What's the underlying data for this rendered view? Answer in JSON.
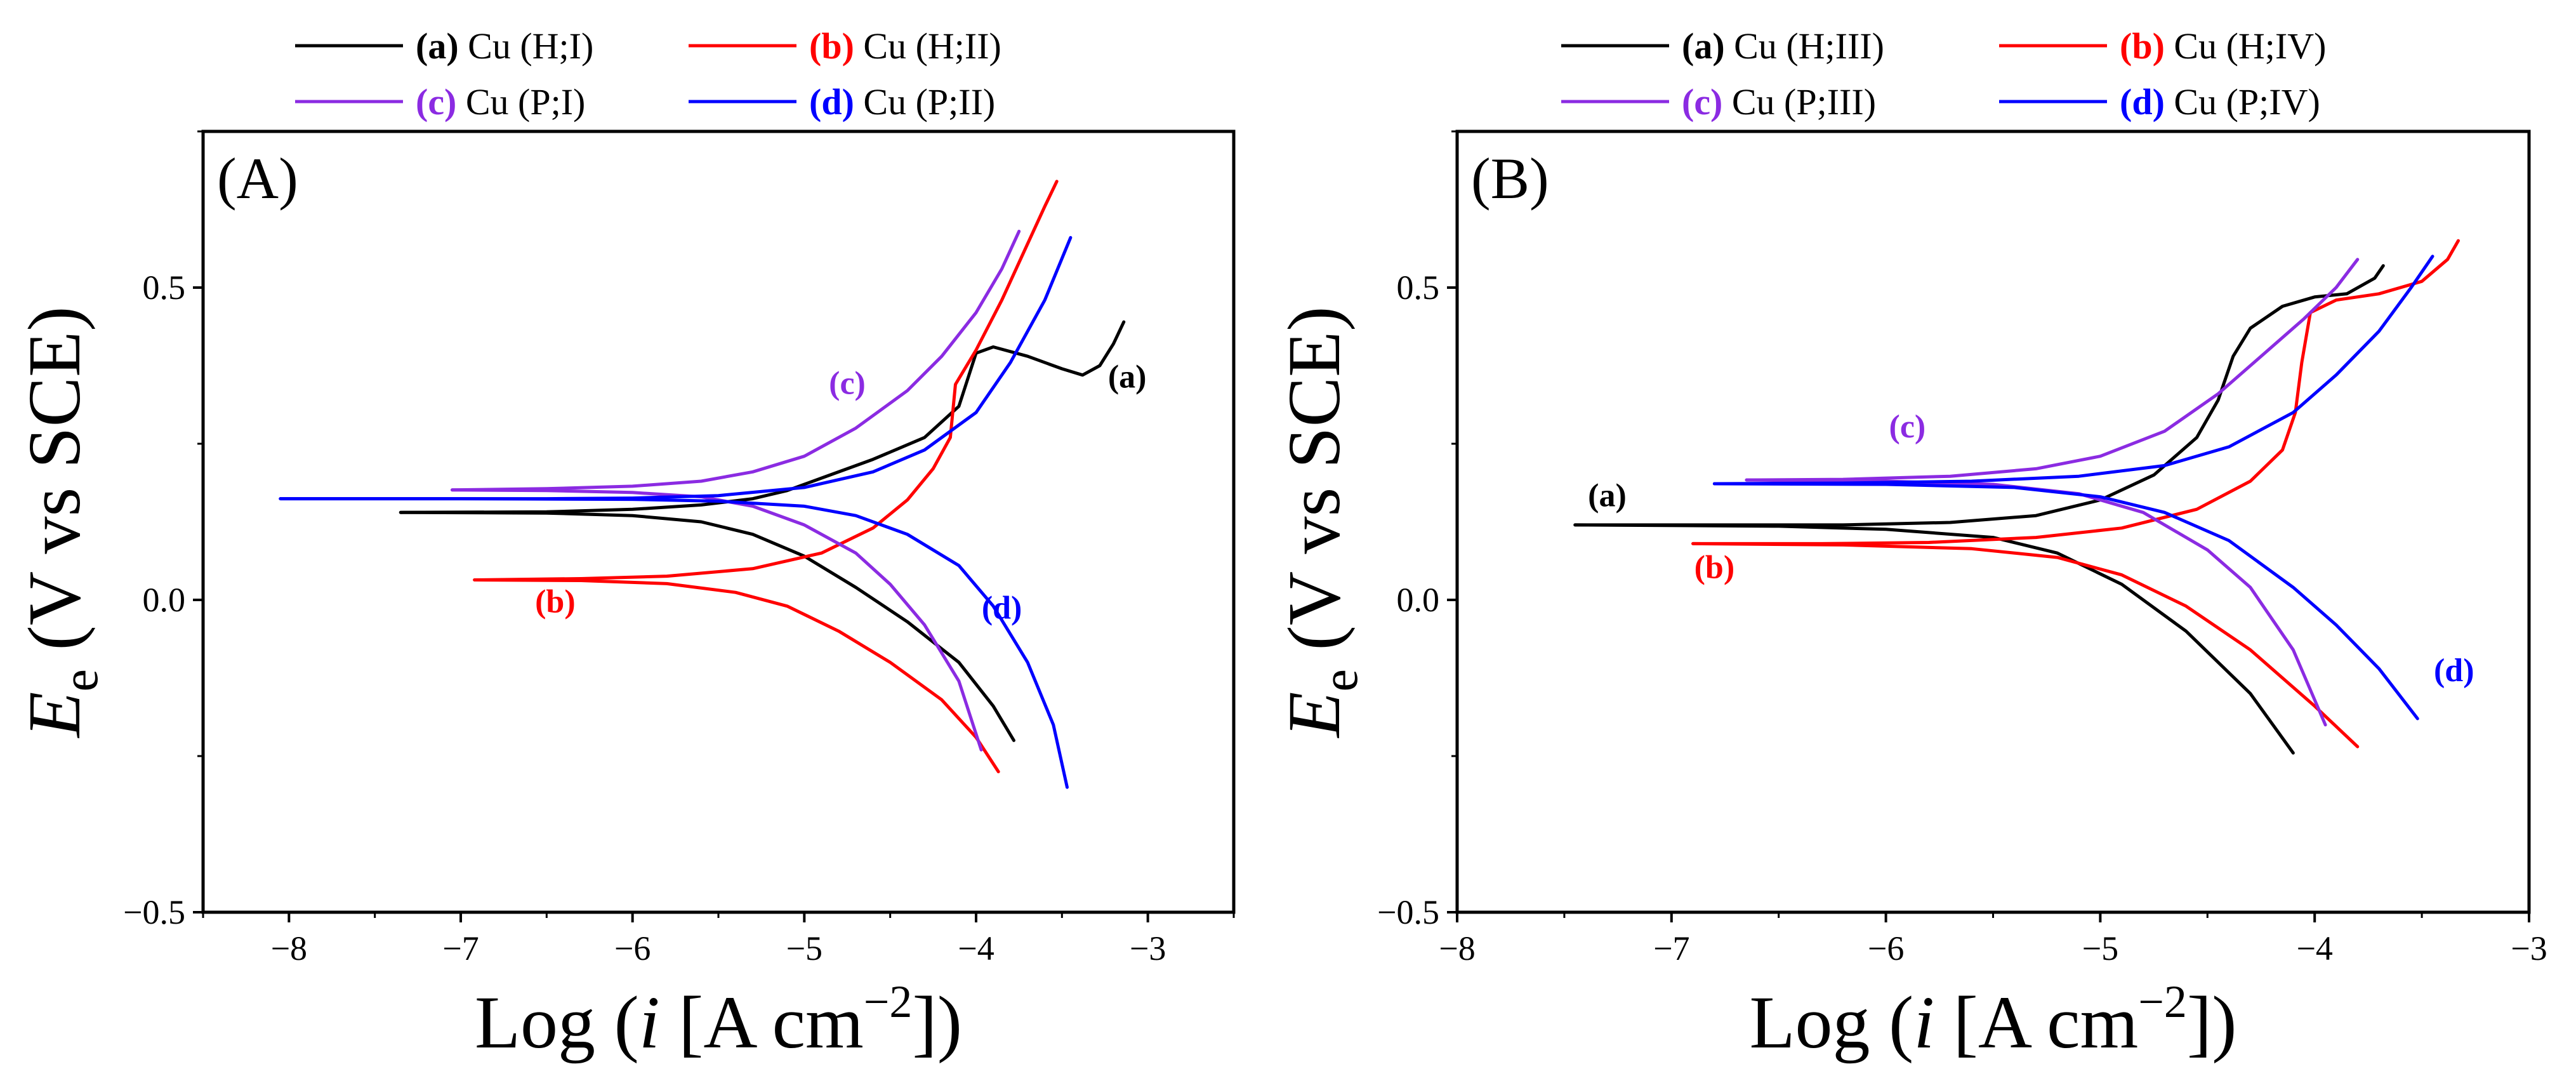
{
  "chart_data": [
    {
      "type": "line",
      "panel_label": "(A)",
      "xlabel": {
        "prefix": "Log (",
        "var": "i",
        "unit": " [A cm",
        "exp": "−2",
        "suffix": "])"
      },
      "ylabel": {
        "var": "E",
        "sub": "e",
        "rest": " (V vs SCE)"
      },
      "xlim": [
        -8.5,
        -2.5
      ],
      "ylim": [
        -0.5,
        0.75
      ],
      "xticks": [
        -8,
        -7,
        -6,
        -5,
        -4,
        -3
      ],
      "xtick_labels": [
        "−8",
        "−7",
        "−6",
        "−5",
        "−4",
        "−3"
      ],
      "yticks": [
        -0.5,
        0.0,
        0.5
      ],
      "ytick_labels": [
        "−0.5",
        "0.0",
        "0.5"
      ],
      "grid": false,
      "legend": "top, outside plot, two columns",
      "series": [
        {
          "key": "(a)",
          "name": "Cu (H;I)",
          "color": "#000000",
          "label_at": [
            -3.12,
            0.34
          ],
          "x": [
            -7.35,
            -6.5,
            -6.0,
            -5.6,
            -5.3,
            -5.1,
            -4.9,
            -4.6,
            -4.3,
            -4.1,
            -4.0,
            -3.9,
            -3.7,
            -3.5,
            -3.38,
            -3.28,
            -3.2,
            -3.14
          ],
          "y": [
            0.14,
            0.141,
            0.145,
            0.152,
            0.162,
            0.175,
            0.195,
            0.225,
            0.26,
            0.31,
            0.395,
            0.405,
            0.39,
            0.37,
            0.36,
            0.375,
            0.41,
            0.445
          ]
        },
        {
          "key": "(a)",
          "name": "Cu (H;I)",
          "color": "#000000",
          "branch": "cathodic",
          "x": [
            -7.35,
            -6.5,
            -6.0,
            -5.6,
            -5.3,
            -5.0,
            -4.7,
            -4.4,
            -4.1,
            -3.9,
            -3.78
          ],
          "y": [
            0.14,
            0.139,
            0.135,
            0.125,
            0.105,
            0.07,
            0.02,
            -0.035,
            -0.1,
            -0.17,
            -0.225
          ]
        },
        {
          "key": "(b)",
          "name": "Cu (H;II)",
          "color": "#ff0000",
          "label_at": [
            -6.45,
            -0.02
          ],
          "x": [
            -6.92,
            -6.3,
            -5.8,
            -5.3,
            -4.9,
            -4.6,
            -4.4,
            -4.25,
            -4.15,
            -4.12,
            -4.0,
            -3.85,
            -3.7,
            -3.6,
            -3.53
          ],
          "y": [
            0.032,
            0.034,
            0.038,
            0.05,
            0.075,
            0.115,
            0.16,
            0.21,
            0.26,
            0.345,
            0.4,
            0.48,
            0.57,
            0.63,
            0.67
          ]
        },
        {
          "key": "(b)",
          "name": "Cu (H;II)",
          "color": "#ff0000",
          "branch": "cathodic",
          "x": [
            -6.92,
            -6.3,
            -5.8,
            -5.4,
            -5.1,
            -4.8,
            -4.5,
            -4.2,
            -4.0,
            -3.87
          ],
          "y": [
            0.032,
            0.031,
            0.026,
            0.012,
            -0.01,
            -0.05,
            -0.1,
            -0.16,
            -0.22,
            -0.275
          ]
        },
        {
          "key": "(c)",
          "name": "Cu (P;I)",
          "color": "#8b2be2",
          "label_at": [
            -4.75,
            0.33
          ],
          "x": [
            -7.05,
            -6.5,
            -6.0,
            -5.6,
            -5.3,
            -5.0,
            -4.7,
            -4.4,
            -4.2,
            -4.0,
            -3.85,
            -3.75
          ],
          "y": [
            0.176,
            0.178,
            0.182,
            0.19,
            0.205,
            0.23,
            0.275,
            0.335,
            0.39,
            0.46,
            0.53,
            0.59
          ]
        },
        {
          "key": "(c)",
          "name": "Cu (P;I)",
          "color": "#8b2be2",
          "branch": "cathodic",
          "x": [
            -7.05,
            -6.5,
            -6.0,
            -5.6,
            -5.3,
            -5.0,
            -4.7,
            -4.5,
            -4.3,
            -4.1,
            -3.97
          ],
          "y": [
            0.176,
            0.175,
            0.172,
            0.165,
            0.15,
            0.12,
            0.075,
            0.025,
            -0.04,
            -0.13,
            -0.24
          ]
        },
        {
          "key": "(d)",
          "name": "Cu (P;II)",
          "color": "#0000ff",
          "label_at": [
            -3.85,
            -0.03
          ],
          "x": [
            -8.05,
            -7.5,
            -7.0,
            -6.5,
            -6.0,
            -5.5,
            -5.0,
            -4.6,
            -4.3,
            -4.0,
            -3.8,
            -3.6,
            -3.45
          ],
          "y": [
            0.162,
            0.162,
            0.162,
            0.162,
            0.163,
            0.167,
            0.18,
            0.205,
            0.24,
            0.3,
            0.38,
            0.48,
            0.58
          ]
        },
        {
          "key": "(d)",
          "name": "Cu (P;II)",
          "color": "#0000ff",
          "branch": "cathodic",
          "x": [
            -8.05,
            -7.0,
            -6.0,
            -5.5,
            -5.0,
            -4.7,
            -4.4,
            -4.1,
            -3.9,
            -3.7,
            -3.55,
            -3.47
          ],
          "y": [
            0.162,
            0.162,
            0.161,
            0.158,
            0.15,
            0.135,
            0.105,
            0.055,
            -0.01,
            -0.1,
            -0.2,
            -0.3
          ]
        }
      ]
    },
    {
      "type": "line",
      "panel_label": "(B)",
      "xlabel": {
        "prefix": "Log (",
        "var": "i",
        "unit": " [A cm",
        "exp": "−2",
        "suffix": "])"
      },
      "ylabel": {
        "var": "E",
        "sub": "e",
        "rest": " (V vs SCE)"
      },
      "xlim": [
        -8.0,
        -3.0
      ],
      "ylim": [
        -0.5,
        0.75
      ],
      "xticks": [
        -8,
        -7,
        -6,
        -5,
        -4,
        -3
      ],
      "xtick_labels": [
        "−8",
        "−7",
        "−6",
        "−5",
        "−4",
        "−3"
      ],
      "yticks": [
        -0.5,
        0.0,
        0.5
      ],
      "ytick_labels": [
        "−0.5",
        "0.0",
        "0.5"
      ],
      "grid": false,
      "legend": "top, outside plot, two columns",
      "series": [
        {
          "key": "(a)",
          "name": "Cu (H;III)",
          "color": "#000000",
          "label_at": [
            -7.3,
            0.15
          ],
          "x": [
            -7.45,
            -6.8,
            -6.2,
            -5.7,
            -5.3,
            -5.0,
            -4.75,
            -4.55,
            -4.45,
            -4.38,
            -4.3,
            -4.15,
            -4.0,
            -3.85,
            -3.72,
            -3.68
          ],
          "y": [
            0.12,
            0.12,
            0.12,
            0.124,
            0.135,
            0.16,
            0.2,
            0.26,
            0.32,
            0.39,
            0.435,
            0.47,
            0.485,
            0.49,
            0.515,
            0.535
          ]
        },
        {
          "key": "(a)",
          "name": "Cu (H;III)",
          "color": "#000000",
          "branch": "cathodic",
          "x": [
            -7.45,
            -6.5,
            -6.0,
            -5.5,
            -5.2,
            -4.9,
            -4.6,
            -4.3,
            -4.1
          ],
          "y": [
            0.12,
            0.118,
            0.113,
            0.1,
            0.075,
            0.025,
            -0.05,
            -0.15,
            -0.245
          ]
        },
        {
          "key": "(b)",
          "name": "Cu (H;IV)",
          "color": "#ff0000",
          "label_at": [
            -6.8,
            0.035
          ],
          "x": [
            -6.9,
            -6.3,
            -5.8,
            -5.3,
            -4.9,
            -4.55,
            -4.3,
            -4.15,
            -4.09,
            -4.06,
            -4.02,
            -3.9,
            -3.7,
            -3.5,
            -3.38,
            -3.33
          ],
          "y": [
            0.09,
            0.09,
            0.092,
            0.1,
            0.115,
            0.145,
            0.19,
            0.24,
            0.3,
            0.38,
            0.46,
            0.48,
            0.49,
            0.51,
            0.545,
            0.575
          ]
        },
        {
          "key": "(b)",
          "name": "Cu (H;IV)",
          "color": "#ff0000",
          "branch": "cathodic",
          "x": [
            -6.9,
            -6.2,
            -5.6,
            -5.2,
            -4.9,
            -4.6,
            -4.3,
            -4.0,
            -3.8
          ],
          "y": [
            0.09,
            0.088,
            0.082,
            0.068,
            0.04,
            -0.01,
            -0.08,
            -0.17,
            -0.235
          ]
        },
        {
          "key": "(c)",
          "name": "Cu (P;III)",
          "color": "#8b2be2",
          "label_at": [
            -5.9,
            0.26
          ],
          "x": [
            -6.65,
            -6.2,
            -5.7,
            -5.3,
            -5.0,
            -4.7,
            -4.45,
            -4.25,
            -4.05,
            -3.9,
            -3.8
          ],
          "y": [
            0.192,
            0.193,
            0.198,
            0.21,
            0.23,
            0.27,
            0.33,
            0.39,
            0.45,
            0.5,
            0.545
          ]
        },
        {
          "key": "(c)",
          "name": "Cu (P;III)",
          "color": "#8b2be2",
          "branch": "cathodic",
          "x": [
            -6.65,
            -6.0,
            -5.5,
            -5.1,
            -4.8,
            -4.5,
            -4.3,
            -4.1,
            -3.95
          ],
          "y": [
            0.192,
            0.19,
            0.185,
            0.17,
            0.14,
            0.08,
            0.02,
            -0.08,
            -0.2
          ]
        },
        {
          "key": "(d)",
          "name": "Cu (P;IV)",
          "color": "#0000ff",
          "label_at": [
            -3.35,
            -0.13
          ],
          "x": [
            -6.8,
            -6.2,
            -5.6,
            -5.1,
            -4.7,
            -4.4,
            -4.1,
            -3.9,
            -3.7,
            -3.55,
            -3.45
          ],
          "y": [
            0.186,
            0.187,
            0.19,
            0.198,
            0.215,
            0.245,
            0.3,
            0.36,
            0.43,
            0.5,
            0.55
          ]
        },
        {
          "key": "(d)",
          "name": "Cu (P;IV)",
          "color": "#0000ff",
          "branch": "cathodic",
          "x": [
            -6.8,
            -6.0,
            -5.4,
            -5.0,
            -4.7,
            -4.4,
            -4.1,
            -3.9,
            -3.7,
            -3.52
          ],
          "y": [
            0.186,
            0.185,
            0.18,
            0.165,
            0.14,
            0.095,
            0.02,
            -0.04,
            -0.11,
            -0.19
          ]
        }
      ]
    }
  ],
  "legends": [
    {
      "items": [
        {
          "key": "(a)",
          "name": "Cu (H;I)",
          "color": "#000000",
          "key_color": "#000000"
        },
        {
          "key": "(b)",
          "name": "Cu (H;II)",
          "color": "#ff0000",
          "key_color": "#ff0000"
        },
        {
          "key": "(c)",
          "name": "Cu (P;I)",
          "color": "#8b2be2",
          "key_color": "#8b2be2"
        },
        {
          "key": "(d)",
          "name": "Cu (P;II)",
          "color": "#0000ff",
          "key_color": "#0000ff"
        }
      ]
    },
    {
      "items": [
        {
          "key": "(a)",
          "name": "Cu (H;III)",
          "color": "#000000",
          "key_color": "#000000"
        },
        {
          "key": "(b)",
          "name": "Cu (H;IV)",
          "color": "#ff0000",
          "key_color": "#ff0000"
        },
        {
          "key": "(c)",
          "name": "Cu (P;III)",
          "color": "#8b2be2",
          "key_color": "#8b2be2"
        },
        {
          "key": "(d)",
          "name": "Cu (P;IV)",
          "color": "#0000ff",
          "key_color": "#0000ff"
        }
      ]
    }
  ]
}
